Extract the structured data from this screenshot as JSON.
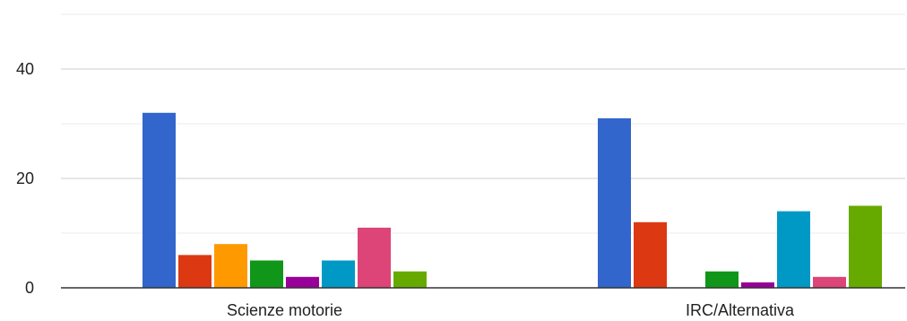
{
  "chart_data": {
    "type": "bar",
    "categories": [
      "Scienze motorie",
      "IRC/Alternativa"
    ],
    "series": [
      {
        "color": "#3366cc",
        "values": [
          32,
          31
        ]
      },
      {
        "color": "#dc3912",
        "values": [
          6,
          12
        ]
      },
      {
        "color": "#ff9900",
        "values": [
          8,
          0
        ]
      },
      {
        "color": "#109618",
        "values": [
          5,
          3
        ]
      },
      {
        "color": "#990099",
        "values": [
          2,
          1
        ]
      },
      {
        "color": "#0099c6",
        "values": [
          5,
          14
        ]
      },
      {
        "color": "#dd4477",
        "values": [
          11,
          2
        ]
      },
      {
        "color": "#66aa00",
        "values": [
          3,
          15
        ]
      }
    ],
    "y_ticks": [
      "0",
      "20",
      "40"
    ],
    "ylim": [
      0,
      50
    ],
    "grid": true,
    "legend": "none"
  }
}
